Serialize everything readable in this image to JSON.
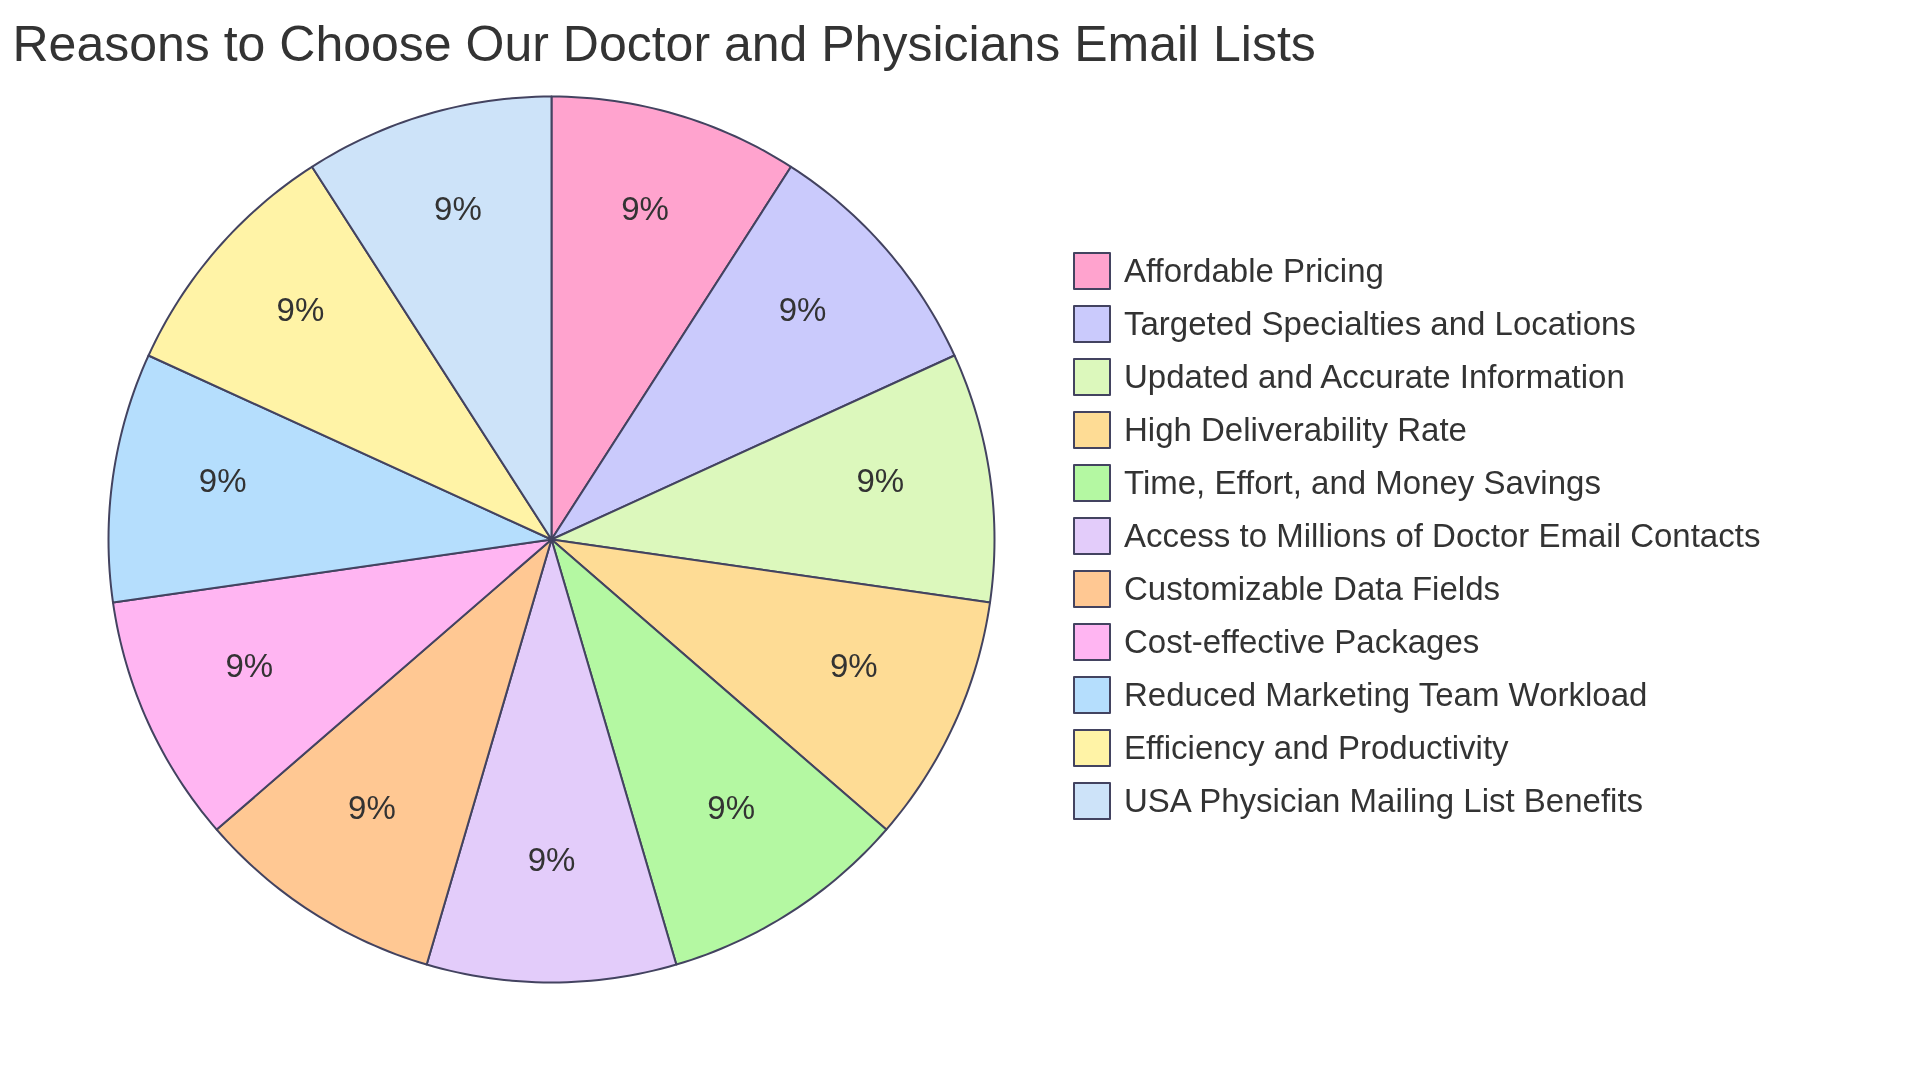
{
  "chart_data": {
    "type": "pie",
    "title": "Reasons to Choose Our Doctor and Physicians Email Lists",
    "categories": [
      "Affordable Pricing",
      "Targeted Specialties and Locations",
      "Updated and Accurate Information",
      "High Deliverability Rate",
      "Time, Effort, and Money Savings",
      "Access to Millions of Doctor Email Contacts",
      "Customizable Data Fields",
      "Cost-effective Packages",
      "Reduced Marketing Team Workload",
      "Efficiency and Productivity",
      "USA Physician Mailing List Benefits"
    ],
    "values": [
      9,
      9,
      9,
      9,
      9,
      9,
      9,
      9,
      9,
      9,
      9
    ],
    "colors": [
      "#ffa3ce",
      "#cacafc",
      "#dcf8bc",
      "#fedc95",
      "#b4f8a2",
      "#e3ccfa",
      "#ffc893",
      "#ffb5f2",
      "#b5defd",
      "#fff3a6",
      "#cde3f9"
    ],
    "value_labels": [
      "9%",
      "9%",
      "9%",
      "9%",
      "9%",
      "9%",
      "9%",
      "9%",
      "9%",
      "9%",
      "9%"
    ],
    "legend": "right"
  }
}
